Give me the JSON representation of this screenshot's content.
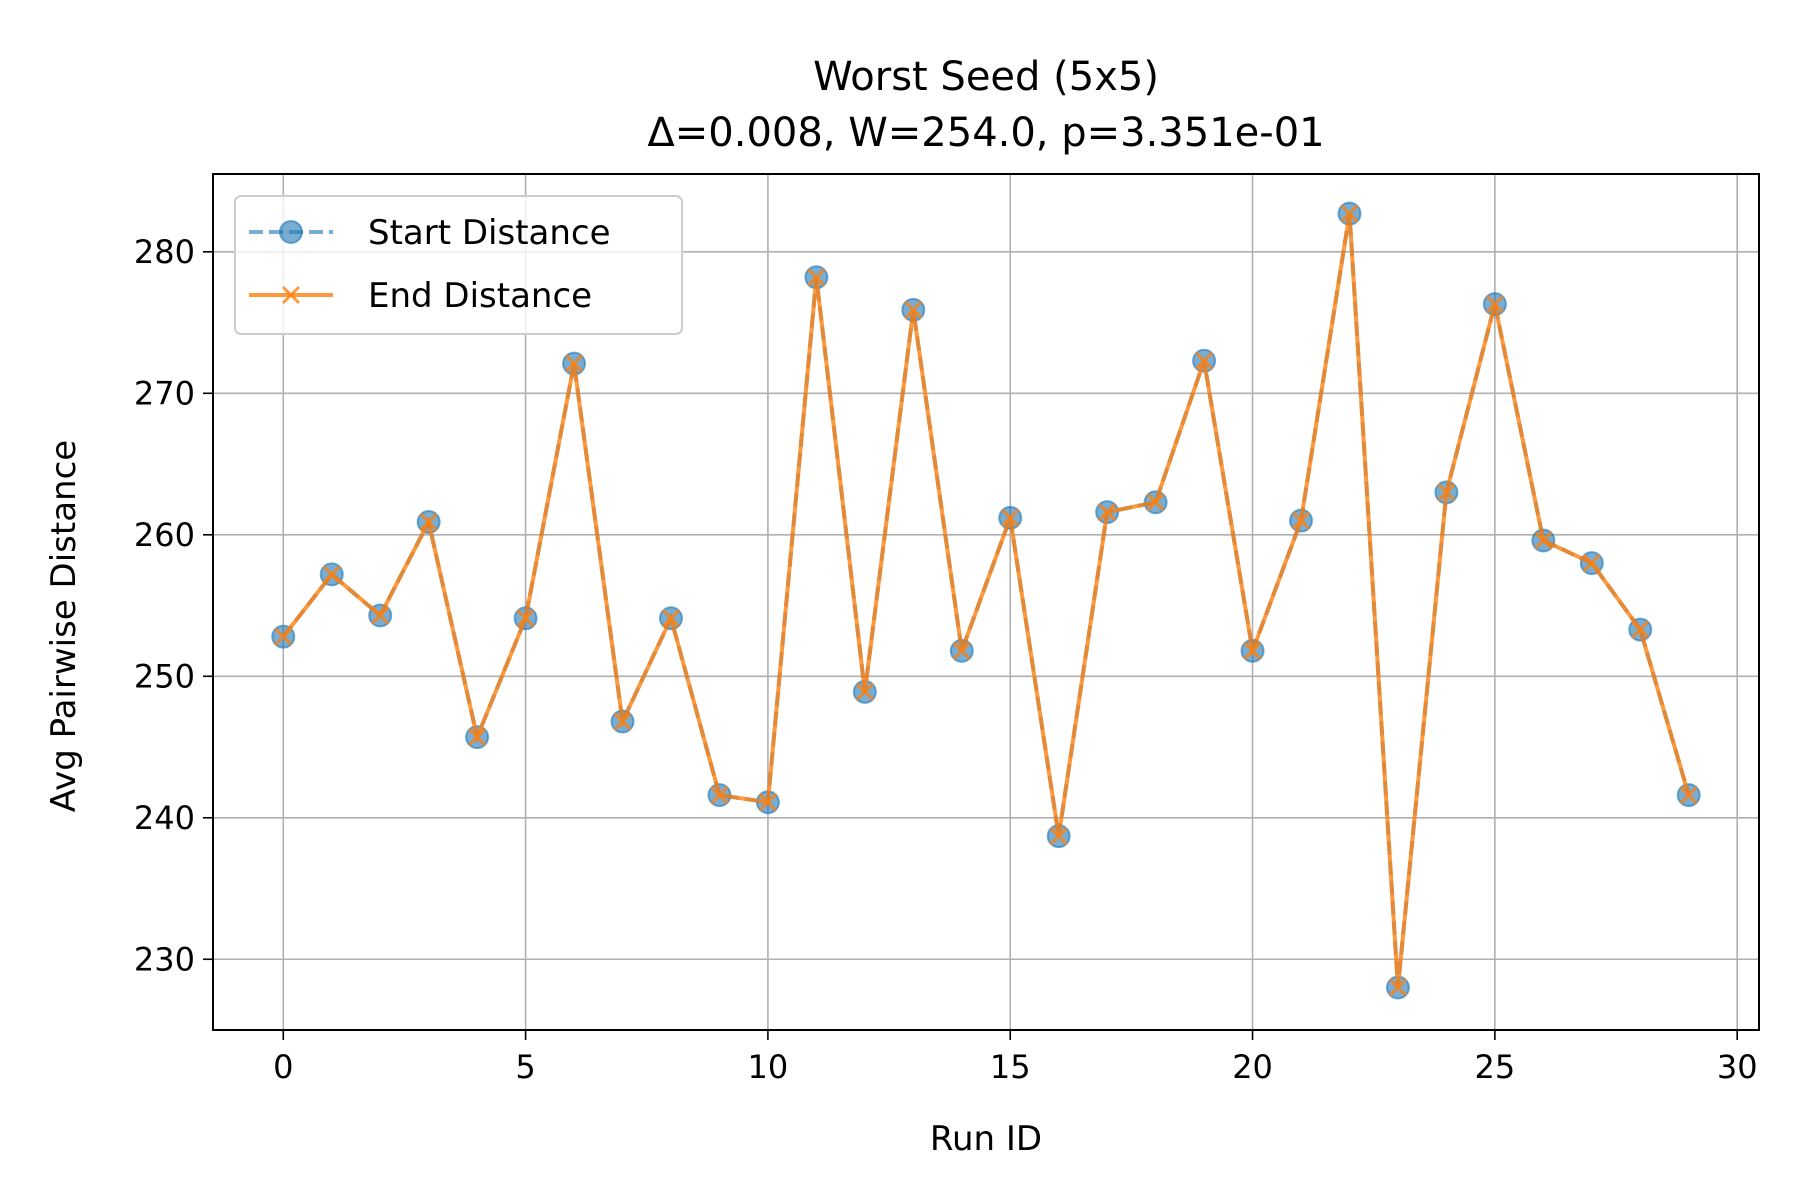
{
  "chart_data": {
    "type": "line",
    "title": "Worst Seed (5x5)",
    "subtitle": "Δ=0.008, W=254.0, p=3.351e-01",
    "xlabel": "Run ID",
    "ylabel": "Avg Pairwise Distance",
    "xlim": [
      -1.45,
      30.45
    ],
    "ylim": [
      225.0,
      285.5
    ],
    "xticks": [
      0,
      5,
      10,
      15,
      20,
      25,
      30
    ],
    "yticks": [
      230,
      240,
      250,
      260,
      270,
      280
    ],
    "grid": true,
    "legend_position": "top-left",
    "x": [
      0,
      1,
      2,
      3,
      4,
      5,
      6,
      7,
      8,
      9,
      10,
      11,
      12,
      13,
      14,
      15,
      16,
      17,
      18,
      19,
      20,
      21,
      22,
      23,
      24,
      25,
      26,
      27,
      28,
      29
    ],
    "series": [
      {
        "name": "Start Distance",
        "marker": "circle",
        "linestyle": "dashed",
        "color": "#1f77b4",
        "values": [
          252.8,
          257.2,
          254.3,
          260.9,
          245.7,
          254.1,
          272.1,
          246.8,
          254.1,
          241.6,
          241.1,
          278.2,
          248.9,
          275.9,
          251.8,
          261.2,
          238.7,
          261.6,
          262.3,
          272.3,
          251.8,
          261.0,
          282.7,
          228.0,
          263.0,
          276.3,
          259.6,
          258.0,
          253.3,
          241.6
        ]
      },
      {
        "name": "End Distance",
        "marker": "x",
        "linestyle": "solid",
        "color": "#ff7f0e",
        "values": [
          252.8,
          257.2,
          254.3,
          260.9,
          245.7,
          254.1,
          272.1,
          246.8,
          254.1,
          241.6,
          241.1,
          278.2,
          248.9,
          275.9,
          251.8,
          261.2,
          238.7,
          261.6,
          262.3,
          272.3,
          251.8,
          261.0,
          282.7,
          228.0,
          263.0,
          276.3,
          259.6,
          258.0,
          253.3,
          241.6
        ]
      }
    ]
  }
}
